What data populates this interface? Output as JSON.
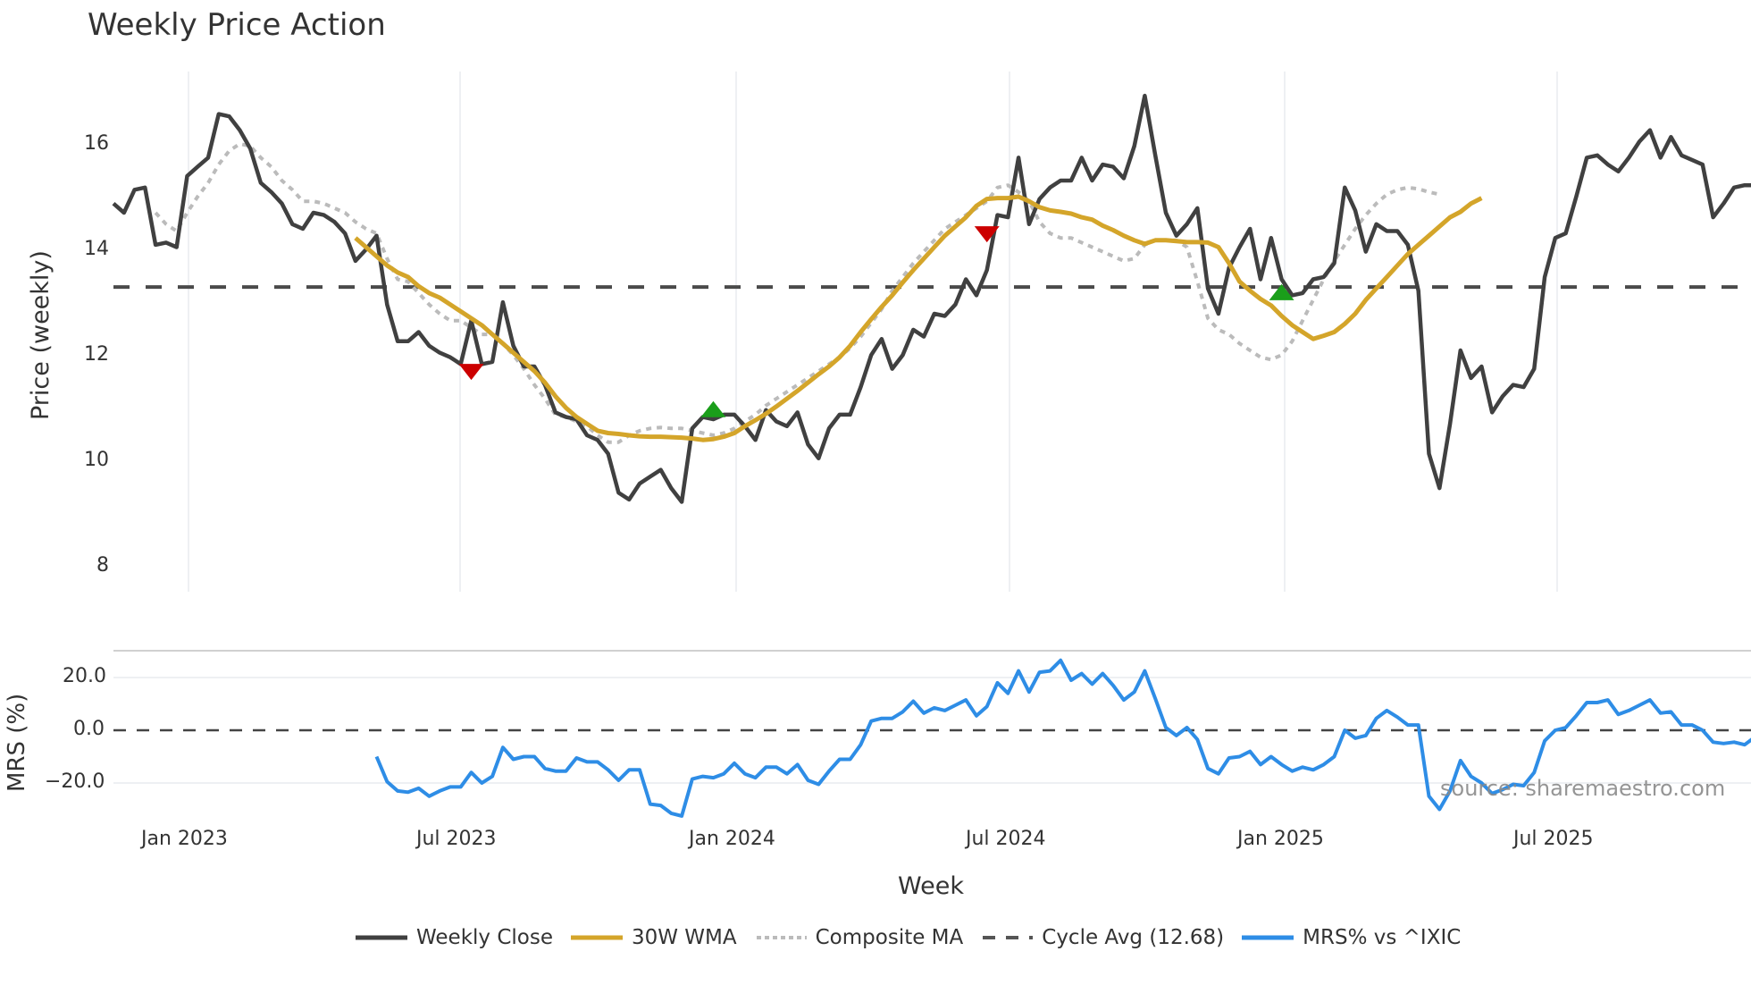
{
  "title": "Weekly Price Action",
  "watermark": "source: sharemaestro.com",
  "axes": {
    "price_ylabel": "Price (weekly)",
    "mrs_ylabel": "MRS (%)",
    "xlabel": "Week",
    "price_yticks": [
      "8",
      "10",
      "12",
      "14",
      "16"
    ],
    "mrs_yticks": [
      "20.0",
      "0.0",
      "−20.0"
    ],
    "xticks": [
      "Jan 2023",
      "Jul 2023",
      "Jan 2024",
      "Jul 2024",
      "Jan 2025",
      "Jul 2025"
    ]
  },
  "legend": [
    {
      "label": "Weekly Close",
      "color": "#404040",
      "style": "solid"
    },
    {
      "label": "30W WMA",
      "color": "#D4A52A",
      "style": "solid"
    },
    {
      "label": "Composite MA",
      "color": "#BBBBBB",
      "style": "dotted"
    },
    {
      "label": "Cycle Avg (12.68)",
      "color": "#555555",
      "style": "dashed"
    },
    {
      "label": "MRS% vs ^IXIC",
      "color": "#2E8DE6",
      "style": "solid"
    }
  ],
  "colors": {
    "close": "#404040",
    "wma": "#D4A52A",
    "composite": "#BBBBBB",
    "cycle": "#4a4a4a",
    "mrs": "#2E8DE6",
    "sell_marker": "#CC0000",
    "buy_marker": "#1A9E1A",
    "grid": "#EEF0F3"
  },
  "chart_data": [
    {
      "type": "line",
      "title": "Weekly Price Action",
      "xlabel": "Week",
      "ylabel": "Price (weekly)",
      "ylim": [
        7.6,
        17.5
      ],
      "x_ticks": [
        "Jan 2023",
        "Jul 2023",
        "Jan 2024",
        "Jul 2024",
        "Jan 2025",
        "Jul 2025"
      ],
      "x_range": [
        "2022-11",
        "2025-10"
      ],
      "series": [
        {
          "name": "Weekly Close",
          "start_week": 0,
          "values": [
            14.5,
            14.3,
            14.8,
            14.85,
            13.6,
            13.65,
            13.55,
            15.1,
            15.3,
            15.5,
            16.45,
            16.4,
            16.1,
            15.7,
            14.95,
            14.75,
            14.5,
            14.05,
            13.95,
            14.3,
            14.25,
            14.1,
            13.85,
            13.25,
            13.5,
            13.8,
            12.3,
            11.5,
            11.5,
            11.7,
            11.4,
            11.25,
            11.15,
            11.0,
            11.95,
            11.0,
            11.05,
            12.35,
            11.4,
            10.95,
            10.95,
            10.55,
            9.95,
            9.85,
            9.8,
            9.45,
            9.35,
            9.05,
            8.2,
            8.05,
            8.4,
            8.55,
            8.7,
            8.3,
            8.0,
            9.6,
            9.85,
            9.8,
            9.9,
            9.9,
            9.65,
            9.35,
            10.0,
            9.75,
            9.65,
            9.95,
            9.25,
            8.95,
            9.6,
            9.9,
            9.9,
            10.5,
            11.2,
            11.55,
            10.9,
            11.2,
            11.75,
            11.6,
            12.1,
            12.05,
            12.3,
            12.85,
            12.5,
            13.05,
            14.25,
            14.2,
            15.5,
            14.05,
            14.6,
            14.85,
            15.0,
            15.0,
            15.5,
            15.0,
            15.35,
            15.3,
            15.05,
            15.75,
            16.85,
            15.55,
            14.3,
            13.8,
            14.05,
            14.4,
            12.65,
            12.1,
            13.1,
            13.55,
            13.95,
            12.85,
            13.75,
            12.85,
            12.5,
            12.55,
            12.85,
            12.9,
            13.2,
            14.85,
            14.35,
            13.45,
            14.05,
            13.9,
            13.9,
            13.6,
            12.6,
            9.05,
            8.3,
            9.7,
            11.3,
            10.7,
            10.95,
            9.95,
            10.3,
            10.55,
            10.5,
            10.9,
            12.9,
            13.75,
            13.85,
            14.65,
            15.5,
            15.55,
            15.35,
            15.2,
            15.5,
            15.85,
            16.1,
            15.5,
            15.95,
            15.55,
            15.45,
            15.35,
            14.2,
            14.5,
            14.85,
            14.9,
            14.9
          ]
        },
        {
          "name": "30W WMA",
          "start_week": 23,
          "values": [
            13.75,
            13.55,
            13.35,
            13.15,
            13.0,
            12.9,
            12.7,
            12.55,
            12.45,
            12.3,
            12.15,
            12.0,
            11.85,
            11.65,
            11.45,
            11.25,
            11.05,
            10.85,
            10.6,
            10.3,
            10.05,
            9.85,
            9.7,
            9.55,
            9.5,
            9.48,
            9.45,
            9.43,
            9.42,
            9.42,
            9.41,
            9.4,
            9.38,
            9.35,
            9.37,
            9.42,
            9.5,
            9.65,
            9.78,
            9.92,
            10.08,
            10.25,
            10.42,
            10.6,
            10.78,
            10.95,
            11.15,
            11.4,
            11.7,
            11.98,
            12.25,
            12.5,
            12.78,
            13.05,
            13.3,
            13.55,
            13.8,
            14.0,
            14.2,
            14.45,
            14.6,
            14.62,
            14.62,
            14.65,
            14.55,
            14.42,
            14.35,
            14.32,
            14.28,
            14.2,
            14.15,
            14.02,
            13.92,
            13.8,
            13.7,
            13.62,
            13.7,
            13.7,
            13.68,
            13.66,
            13.66,
            13.65,
            13.55,
            13.2,
            12.8,
            12.6,
            12.42,
            12.28,
            12.05,
            11.85,
            11.7,
            11.55,
            11.62,
            11.7,
            11.88,
            12.1,
            12.4,
            12.65,
            12.9,
            13.15,
            13.4,
            13.6,
            13.8,
            14.0,
            14.2,
            14.32,
            14.5,
            14.62
          ]
        },
        {
          "name": "Composite MA",
          "start_week": 4,
          "values": [
            14.3,
            14.05,
            13.9,
            14.3,
            14.65,
            14.95,
            15.35,
            15.65,
            15.8,
            15.75,
            15.5,
            15.3,
            15.0,
            14.8,
            14.55,
            14.55,
            14.5,
            14.4,
            14.3,
            14.1,
            13.95,
            13.85,
            13.3,
            12.85,
            12.8,
            12.55,
            12.3,
            12.1,
            11.95,
            11.95,
            11.8,
            11.65,
            11.65,
            11.45,
            11.2,
            10.9,
            10.55,
            10.25,
            9.9,
            9.85,
            9.75,
            9.65,
            9.45,
            9.3,
            9.3,
            9.45,
            9.55,
            9.6,
            9.62,
            9.6,
            9.6,
            9.55,
            9.5,
            9.45,
            9.5,
            9.6,
            9.75,
            9.9,
            10.1,
            10.25,
            10.4,
            10.55,
            10.7,
            10.85,
            11.0,
            11.15,
            11.35,
            11.6,
            11.9,
            12.2,
            12.6,
            12.9,
            13.2,
            13.45,
            13.7,
            13.95,
            14.1,
            14.25,
            14.4,
            14.55,
            14.85,
            14.9,
            14.75,
            14.55,
            14.1,
            13.85,
            13.75,
            13.75,
            13.65,
            13.55,
            13.45,
            13.35,
            13.25,
            13.3,
            13.6,
            13.7,
            13.7,
            13.7,
            13.55,
            12.8,
            12.0,
            11.75,
            11.65,
            11.45,
            11.3,
            11.15,
            11.1,
            11.2,
            11.5,
            11.95,
            12.4,
            12.85,
            13.25,
            13.6,
            13.95,
            14.25,
            14.5,
            14.7,
            14.8,
            14.85,
            14.82,
            14.75,
            14.7
          ]
        },
        {
          "name": "Cycle Avg (12.68)",
          "constant": 12.68
        }
      ],
      "markers": [
        {
          "type": "sell",
          "week": 34,
          "price": 10.85
        },
        {
          "type": "buy",
          "week": 57,
          "price": 10.0
        },
        {
          "type": "sell",
          "week": 83,
          "price": 13.85
        },
        {
          "type": "buy",
          "week": 111,
          "price": 12.55
        }
      ]
    },
    {
      "type": "line",
      "ylabel": "MRS (%)",
      "xlabel": "Week",
      "ylim": [
        -33,
        28
      ],
      "reference_line": 0.0,
      "series": [
        {
          "name": "MRS% vs ^IXIC",
          "start_week": 25,
          "values": [
            -10,
            -19.5,
            -23,
            -23.5,
            -22,
            -25,
            -23,
            -21.5,
            -21.5,
            -16,
            -20,
            -17.5,
            -6.5,
            -11,
            -10,
            -10,
            -14.5,
            -15.5,
            -15.5,
            -10.5,
            -12,
            -12,
            -15,
            -19,
            -15,
            -15,
            -28,
            -28.5,
            -31.5,
            -32.5,
            -18.5,
            -17.5,
            -18,
            -16.5,
            -12.5,
            -16.5,
            -18,
            -14,
            -14,
            -16.5,
            -13,
            -19,
            -20.5,
            -15.5,
            -11,
            -11,
            -5.5,
            3.5,
            4.5,
            4.5,
            7,
            11,
            6.5,
            8.5,
            7.5,
            9.5,
            11.5,
            5.5,
            9,
            18,
            14,
            22.5,
            14.5,
            22,
            22.5,
            26.5,
            19,
            21.5,
            17.5,
            21.5,
            17,
            11.5,
            14.5,
            22.5,
            12,
            1,
            -2,
            1,
            -3.5,
            -14.5,
            -16.5,
            -10.5,
            -10,
            -8,
            -13,
            -10,
            -13,
            -15.5,
            -14,
            -15,
            -13,
            -10,
            0,
            -3,
            -2,
            4.5,
            7.5,
            5,
            2,
            2,
            -25,
            -30,
            -23,
            -11.5,
            -17.5,
            -20,
            -24,
            -22.5,
            -20.5,
            -21,
            -16,
            -4,
            0,
            1,
            5.5,
            10.5,
            10.5,
            11.5,
            6,
            7.5,
            9.5,
            11.5,
            6.5,
            7,
            2,
            2,
            0,
            -4.5,
            -5,
            -4.5,
            -5.5,
            -2.5
          ]
        }
      ]
    }
  ]
}
